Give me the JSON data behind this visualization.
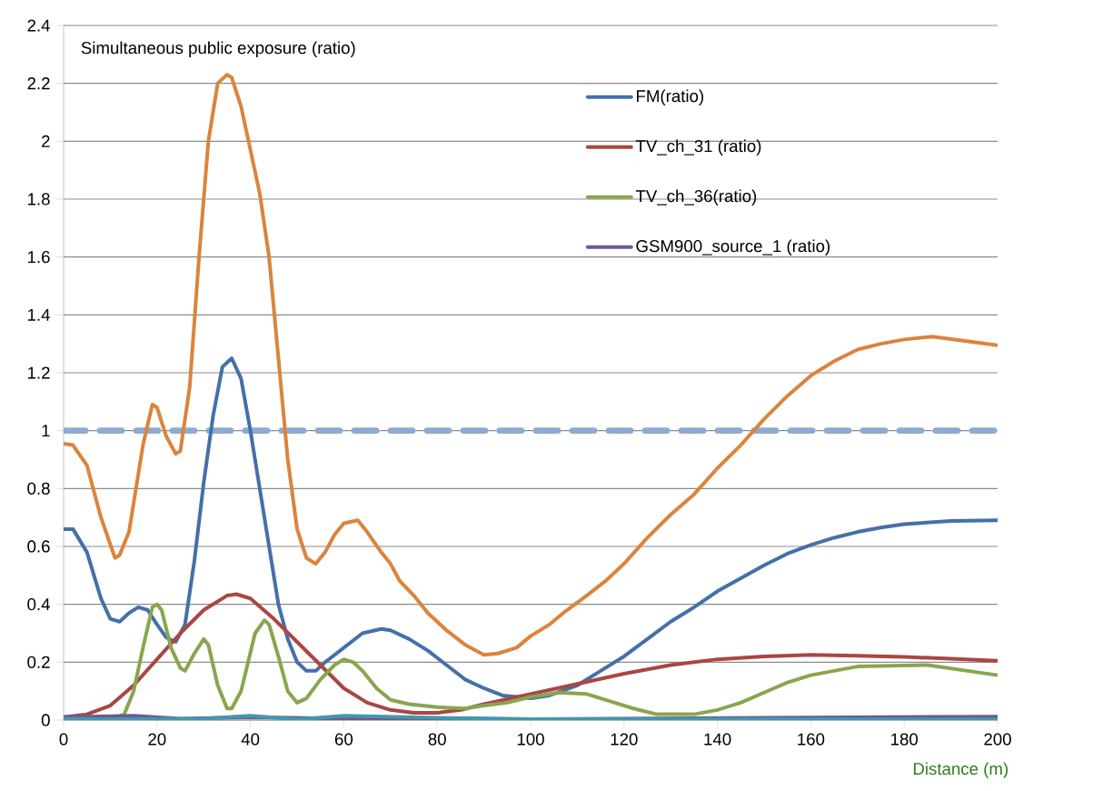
{
  "chart_data": {
    "type": "line",
    "title": "Simultaneous  public exposure (ratio)",
    "xlabel": "Distance (m)",
    "xlim": [
      0,
      200
    ],
    "xticks": [
      0,
      20,
      40,
      60,
      80,
      100,
      120,
      140,
      160,
      180,
      200
    ],
    "ylim": [
      0,
      2.4
    ],
    "yticks": [
      0,
      0.2,
      0.4,
      0.6,
      0.8,
      1,
      1.2,
      1.4,
      1.6,
      1.8,
      2,
      2.2,
      2.4
    ],
    "grid": "y",
    "legend": "top right",
    "marker": "none",
    "ref_lines": [
      {
        "axis": "y",
        "value": 1,
        "color": "#8eaad4",
        "line_style": "dashed"
      }
    ],
    "series": [
      {
        "name": "FM(ratio)",
        "color": "#4470a8",
        "x": [
          0,
          2,
          5,
          8,
          10,
          12,
          14,
          16,
          18,
          20,
          22,
          24,
          26,
          28,
          30,
          32,
          34,
          36,
          38,
          40,
          42,
          44,
          46,
          48,
          50,
          52,
          54,
          56,
          60,
          64,
          68,
          70,
          74,
          78,
          82,
          86,
          90,
          94,
          100,
          104,
          110,
          115,
          120,
          125,
          130,
          135,
          140,
          145,
          150,
          155,
          160,
          165,
          170,
          175,
          180,
          190,
          200
        ],
        "values": [
          0.66,
          0.66,
          0.58,
          0.42,
          0.35,
          0.34,
          0.37,
          0.39,
          0.38,
          0.33,
          0.285,
          0.27,
          0.33,
          0.55,
          0.82,
          1.05,
          1.22,
          1.25,
          1.18,
          1.0,
          0.8,
          0.6,
          0.4,
          0.28,
          0.2,
          0.17,
          0.17,
          0.2,
          0.25,
          0.3,
          0.315,
          0.31,
          0.28,
          0.24,
          0.19,
          0.14,
          0.11,
          0.085,
          0.075,
          0.085,
          0.12,
          0.17,
          0.22,
          0.28,
          0.34,
          0.39,
          0.445,
          0.49,
          0.535,
          0.575,
          0.605,
          0.63,
          0.65,
          0.665,
          0.677,
          0.688,
          0.69
        ]
      },
      {
        "name": "TV_ch_31 (ratio)",
        "color": "#aa4643",
        "x": [
          0,
          5,
          10,
          15,
          20,
          25,
          30,
          35,
          37,
          40,
          45,
          50,
          55,
          60,
          65,
          70,
          75,
          80,
          85,
          90,
          100,
          110,
          120,
          130,
          140,
          150,
          160,
          170,
          180,
          190,
          200
        ],
        "values": [
          0.01,
          0.02,
          0.05,
          0.12,
          0.21,
          0.3,
          0.38,
          0.43,
          0.435,
          0.42,
          0.35,
          0.27,
          0.19,
          0.11,
          0.06,
          0.035,
          0.025,
          0.025,
          0.035,
          0.055,
          0.09,
          0.125,
          0.16,
          0.19,
          0.21,
          0.22,
          0.225,
          0.222,
          0.218,
          0.212,
          0.205
        ]
      },
      {
        "name": "TV_ch_36(ratio)",
        "color": "#89a54e",
        "x": [
          0,
          10,
          13,
          15,
          17,
          19,
          20,
          21,
          23,
          25,
          26,
          28,
          30,
          31,
          33,
          35,
          36,
          38,
          41,
          43,
          44,
          46,
          48,
          50,
          52,
          55,
          58,
          60,
          62,
          64,
          67,
          70,
          74,
          80,
          86,
          90,
          95,
          100,
          106,
          112,
          118,
          122,
          127,
          135,
          140,
          145,
          150,
          155,
          160,
          170,
          185,
          200
        ],
        "values": [
          0.0,
          0.0,
          0.02,
          0.1,
          0.25,
          0.39,
          0.4,
          0.38,
          0.25,
          0.18,
          0.17,
          0.23,
          0.28,
          0.26,
          0.12,
          0.04,
          0.04,
          0.1,
          0.3,
          0.345,
          0.33,
          0.22,
          0.1,
          0.06,
          0.075,
          0.14,
          0.19,
          0.21,
          0.2,
          0.17,
          0.11,
          0.07,
          0.055,
          0.045,
          0.04,
          0.05,
          0.06,
          0.08,
          0.095,
          0.09,
          0.06,
          0.04,
          0.02,
          0.02,
          0.035,
          0.06,
          0.095,
          0.13,
          0.155,
          0.185,
          0.19,
          0.155
        ]
      },
      {
        "name": "GSM900_source_1 (ratio)",
        "color": "#71588f",
        "x": [
          0,
          15,
          25,
          40,
          60,
          100,
          150,
          200
        ],
        "values": [
          0.01,
          0.015,
          0.005,
          0.01,
          0.005,
          0.003,
          0.008,
          0.012
        ]
      },
      {
        "color": "#db843d",
        "x": [
          0,
          2,
          5,
          8,
          11,
          12,
          14,
          17,
          19,
          20,
          22,
          24,
          25,
          27,
          29,
          31,
          33,
          35,
          36,
          38,
          40,
          42,
          44,
          46,
          48,
          50,
          52,
          54,
          56,
          58,
          60,
          63,
          65,
          68,
          70,
          72,
          75,
          78,
          82,
          86,
          90,
          93,
          97,
          100,
          104,
          107,
          112,
          116,
          120,
          125,
          130,
          135,
          140,
          145,
          150,
          155,
          160,
          165,
          170,
          175,
          180,
          186,
          193,
          200
        ],
        "values": [
          0.955,
          0.95,
          0.88,
          0.7,
          0.56,
          0.57,
          0.65,
          0.95,
          1.09,
          1.08,
          0.98,
          0.92,
          0.93,
          1.15,
          1.6,
          2.0,
          2.2,
          2.23,
          2.22,
          2.12,
          1.97,
          1.82,
          1.6,
          1.25,
          0.9,
          0.66,
          0.56,
          0.54,
          0.58,
          0.64,
          0.68,
          0.69,
          0.65,
          0.58,
          0.54,
          0.48,
          0.43,
          0.37,
          0.31,
          0.26,
          0.225,
          0.23,
          0.25,
          0.29,
          0.33,
          0.37,
          0.43,
          0.48,
          0.54,
          0.63,
          0.71,
          0.78,
          0.87,
          0.95,
          1.04,
          1.12,
          1.19,
          1.24,
          1.28,
          1.3,
          1.315,
          1.325,
          1.31,
          1.295
        ]
      },
      {
        "color": "#4198af",
        "x": [
          0,
          10,
          20,
          30,
          40,
          50,
          60,
          80,
          100,
          150,
          200
        ],
        "values": [
          0.005,
          0.002,
          0.004,
          0.005,
          0.015,
          0.002,
          0.015,
          0.008,
          0.003,
          0.003,
          0.002
        ]
      }
    ]
  }
}
